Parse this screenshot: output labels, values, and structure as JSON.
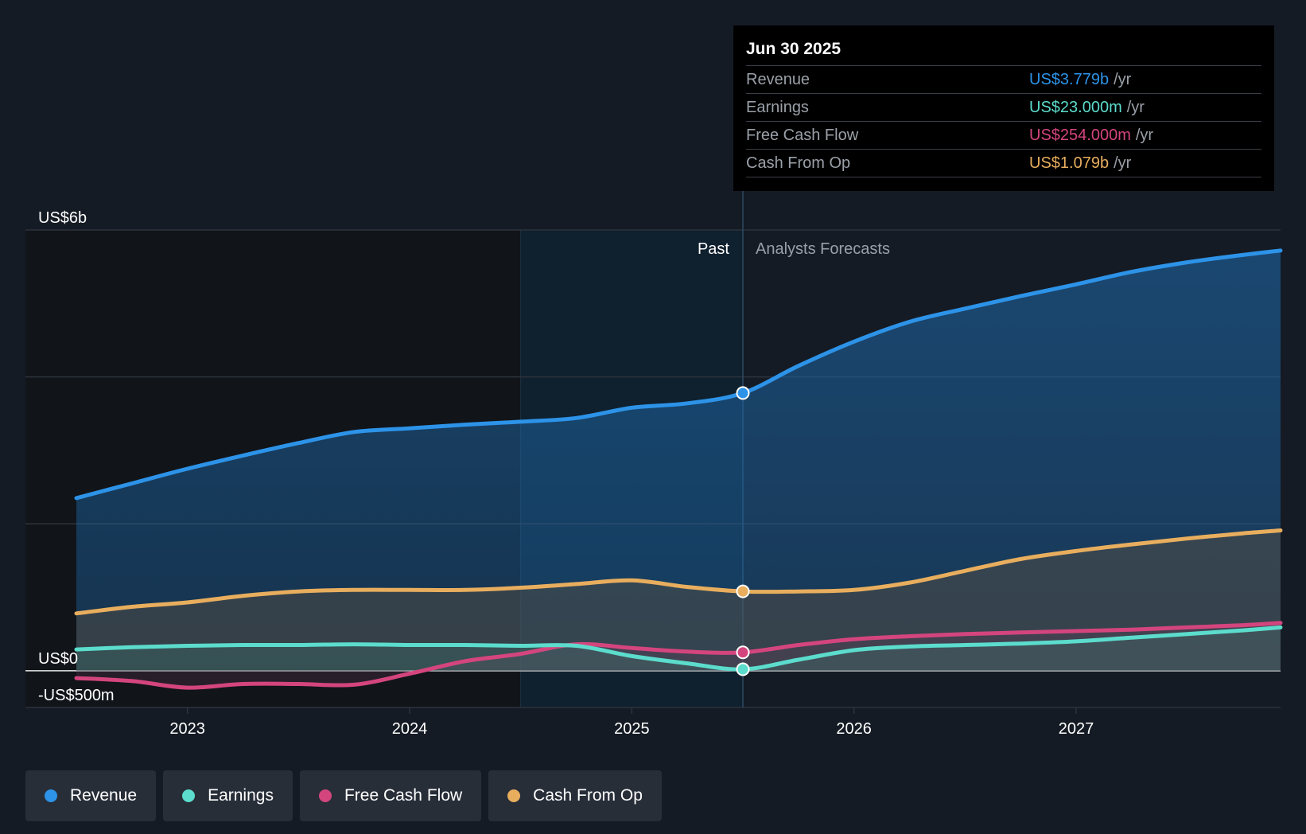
{
  "chart_data": {
    "type": "line",
    "x_range": [
      2022.5,
      2027.92
    ],
    "ylim": [
      -0.5,
      6
    ],
    "y_ticks": [
      {
        "value": 6,
        "label": "US$6b"
      },
      {
        "value": 0,
        "label": "US$0"
      },
      {
        "value": -0.5,
        "label": "-US$500m"
      }
    ],
    "x_ticks": [
      {
        "value": 2023,
        "label": "2023"
      },
      {
        "value": 2024,
        "label": "2024"
      },
      {
        "value": 2025,
        "label": "2025"
      },
      {
        "value": 2026,
        "label": "2026"
      },
      {
        "value": 2027,
        "label": "2027"
      }
    ],
    "gridlines": [
      6,
      4,
      2
    ],
    "past_label": "Past",
    "forecast_label": "Analysts Forecasts",
    "divider_x": 2025.5,
    "highlight_start_x": 2024.5,
    "series": [
      {
        "name": "Revenue",
        "color": "#2d93e8",
        "x": [
          2022.5,
          2022.75,
          2023.0,
          2023.25,
          2023.5,
          2023.75,
          2024.0,
          2024.25,
          2024.5,
          2024.75,
          2025.0,
          2025.25,
          2025.5,
          2025.75,
          2026.0,
          2026.25,
          2026.5,
          2026.75,
          2027.0,
          2027.25,
          2027.5,
          2027.75,
          2027.92
        ],
        "values": [
          2.35,
          2.55,
          2.75,
          2.93,
          3.1,
          3.25,
          3.3,
          3.35,
          3.39,
          3.44,
          3.58,
          3.64,
          3.78,
          4.15,
          4.48,
          4.75,
          4.93,
          5.1,
          5.26,
          5.43,
          5.56,
          5.66,
          5.72
        ]
      },
      {
        "name": "Cash From Op",
        "color": "#e8ae5e",
        "x": [
          2022.5,
          2022.75,
          2023.0,
          2023.25,
          2023.5,
          2023.75,
          2024.0,
          2024.25,
          2024.5,
          2024.75,
          2025.0,
          2025.25,
          2025.5,
          2025.75,
          2026.0,
          2026.25,
          2026.5,
          2026.75,
          2027.0,
          2027.25,
          2027.5,
          2027.75,
          2027.92
        ],
        "values": [
          0.78,
          0.87,
          0.93,
          1.02,
          1.08,
          1.1,
          1.1,
          1.1,
          1.13,
          1.18,
          1.23,
          1.14,
          1.08,
          1.08,
          1.1,
          1.2,
          1.36,
          1.52,
          1.63,
          1.72,
          1.8,
          1.87,
          1.91
        ]
      },
      {
        "name": "Free Cash Flow",
        "color": "#d4457e",
        "x": [
          2022.5,
          2022.75,
          2023.0,
          2023.25,
          2023.5,
          2023.75,
          2024.0,
          2024.25,
          2024.5,
          2024.75,
          2025.0,
          2025.25,
          2025.5,
          2025.75,
          2026.0,
          2026.25,
          2026.5,
          2026.75,
          2027.0,
          2027.25,
          2027.5,
          2027.75,
          2027.92
        ],
        "values": [
          -0.1,
          -0.14,
          -0.23,
          -0.18,
          -0.18,
          -0.19,
          -0.04,
          0.13,
          0.23,
          0.36,
          0.31,
          0.26,
          0.25,
          0.35,
          0.43,
          0.47,
          0.5,
          0.52,
          0.54,
          0.56,
          0.59,
          0.62,
          0.65
        ]
      },
      {
        "name": "Earnings",
        "color": "#5cdccc",
        "x": [
          2022.5,
          2022.75,
          2023.0,
          2023.25,
          2023.5,
          2023.75,
          2024.0,
          2024.25,
          2024.5,
          2024.75,
          2025.0,
          2025.25,
          2025.5,
          2025.75,
          2026.0,
          2026.25,
          2026.5,
          2026.75,
          2027.0,
          2027.25,
          2027.5,
          2027.75,
          2027.92
        ],
        "values": [
          0.29,
          0.32,
          0.34,
          0.35,
          0.35,
          0.36,
          0.35,
          0.35,
          0.34,
          0.34,
          0.2,
          0.1,
          0.02,
          0.15,
          0.28,
          0.33,
          0.35,
          0.37,
          0.4,
          0.45,
          0.5,
          0.55,
          0.59
        ]
      }
    ]
  },
  "tooltip": {
    "date": "Jun 30 2025",
    "rows": [
      {
        "label": "Revenue",
        "value": "US$3.779b",
        "unit": "/yr",
        "color": "#2d93e8"
      },
      {
        "label": "Earnings",
        "value": "US$23.000m",
        "unit": "/yr",
        "color": "#5cdccc"
      },
      {
        "label": "Free Cash Flow",
        "value": "US$254.000m",
        "unit": "/yr",
        "color": "#d4457e"
      },
      {
        "label": "Cash From Op",
        "value": "US$1.079b",
        "unit": "/yr",
        "color": "#e8ae5e"
      }
    ]
  },
  "legend": [
    {
      "label": "Revenue",
      "color": "#2d93e8"
    },
    {
      "label": "Earnings",
      "color": "#5cdccc"
    },
    {
      "label": "Free Cash Flow",
      "color": "#d4457e"
    },
    {
      "label": "Cash From Op",
      "color": "#e8ae5e"
    }
  ]
}
